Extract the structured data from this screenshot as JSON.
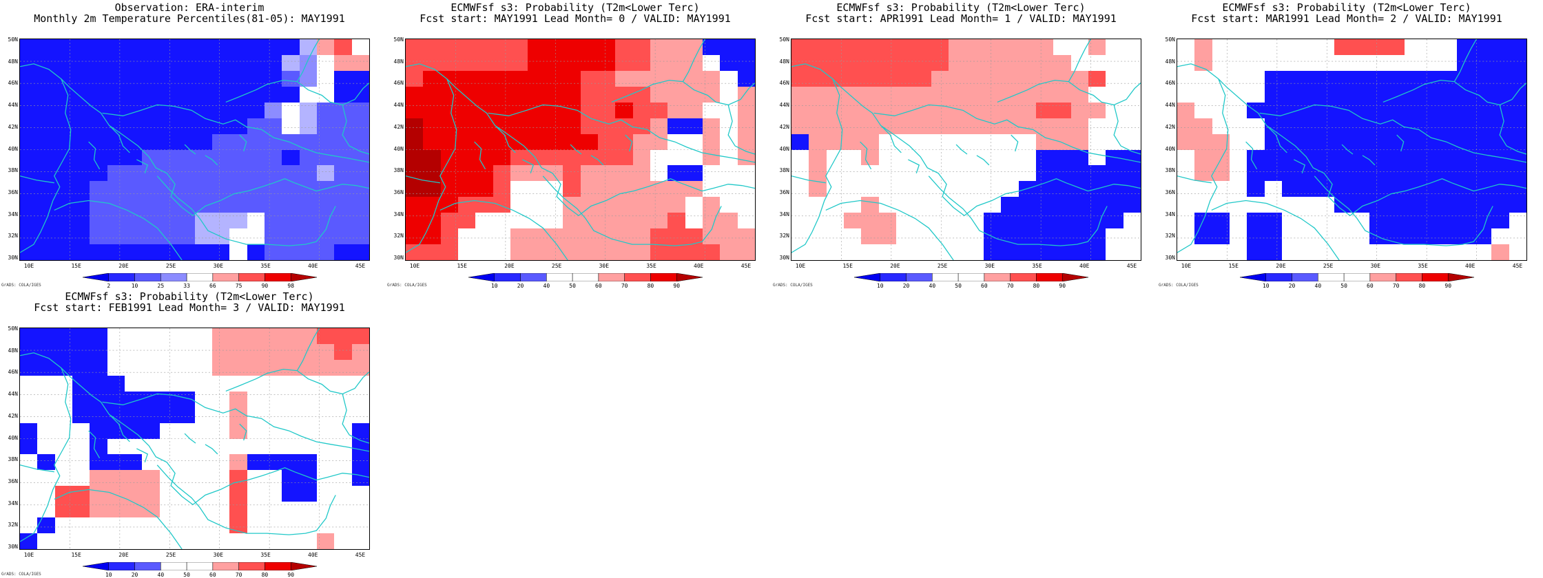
{
  "footer": "GrADS: COLA/IGES",
  "colors": {
    "deep_blue": "#1414ff",
    "mid_blue": "#5a5aff",
    "light_blue": "#8c8cff",
    "pale_blue": "#b4b4ff",
    "white": "#ffffff",
    "pale_red": "#ffa0a0",
    "mid_red": "#ff5050",
    "red": "#ee0000",
    "dark_red": "#b40000",
    "coastline": "#20c8c8"
  },
  "panels": [
    {
      "title1": "Observation: ERA-interim",
      "title2": "Monthly 2m Temperature Percentiles(81-05): MAY1991",
      "colorbar_ticks": [
        "2",
        "10",
        "25",
        "33",
        "66",
        "75",
        "90",
        "98"
      ],
      "colorbar_colors": [
        "#0000f0",
        "#2828ff",
        "#5a5aff",
        "#8c8cff",
        "#ffffff",
        "#ffa0a0",
        "#ff5050",
        "#ee0000",
        "#b40000"
      ],
      "ytick_labels": [
        "50N",
        "48N",
        "46N",
        "44N",
        "42N",
        "40N",
        "38N",
        "36N",
        "34N",
        "32N",
        "30N"
      ],
      "xtick_labels": [
        "10E",
        "15E",
        "20E",
        "25E",
        "30E",
        "35E",
        "40E",
        "45E"
      ],
      "palette": [
        "#ffffff",
        "#1414ff",
        "#5a5aff",
        "#8c8cff",
        "#b4b4ff",
        "#ffa0a0",
        "#ff5050"
      ],
      "grid": [
        "11111111111111114560",
        "11111111111111143055",
        "11111111111111123011",
        "11111111111111110011",
        "11111111111111304222",
        "11111111111112204222",
        "11111111111222222222",
        "11111112222222212222",
        "11111222222222222422",
        "11112222222222222222",
        "11112222222222222222",
        "11112222224440222222",
        "11112222224400222222",
        "11111111111101222211"
      ]
    },
    {
      "title1": "ECMWFsf s3: Probability (T2m<Lower Terc)",
      "title2": "Fcst start: MAY1991   Lead Month= 0 / VALID: MAY1991",
      "colorbar_ticks": [
        "10",
        "20",
        "40",
        "50",
        "60",
        "70",
        "80",
        "90"
      ],
      "colorbar_colors": [
        "#0000f0",
        "#2828ff",
        "#5a5aff",
        "#ffffff",
        "#ffffff",
        "#ffa0a0",
        "#ff5050",
        "#ee0000",
        "#b40000"
      ],
      "ytick_labels": [
        "50N",
        "48N",
        "46N",
        "44N",
        "42N",
        "40N",
        "38N",
        "36N",
        "34N",
        "32N",
        "30N"
      ],
      "xtick_labels": [
        "10E",
        "15E",
        "20E",
        "25E",
        "30E",
        "35E",
        "40E",
        "45E"
      ],
      "palette": [
        "#ffffff",
        "#1414ff",
        "#5a5aff",
        "#8c8cff",
        "#b4b4ff",
        "#ffa0a0",
        "#ff5050",
        "#ee0000",
        "#b40000"
      ],
      "grid": [
        "66666667777766555111",
        "66666667777766555011",
        "67777777776655555501",
        "77777777776666555505",
        "77777777776676655005",
        "87777777776666511505",
        "87777777777665500505",
        "88777766666665000505",
        "88777655565555011000",
        "88777600065555555000",
        "77766600055555550500",
        "77660000055555560550",
        "77600055555555666555",
        "66600055555555666655"
      ]
    },
    {
      "title1": "ECMWFsf s3: Probability (T2m<Lower Terc)",
      "title2": "Fcst start: APR1991   Lead Month= 1 / VALID: MAY1991",
      "colorbar_ticks": [
        "10",
        "20",
        "40",
        "50",
        "60",
        "70",
        "80",
        "90"
      ],
      "colorbar_colors": [
        "#0000f0",
        "#2828ff",
        "#5a5aff",
        "#ffffff",
        "#ffffff",
        "#ffa0a0",
        "#ff5050",
        "#ee0000",
        "#b40000"
      ],
      "ytick_labels": [
        "50N",
        "48N",
        "46N",
        "44N",
        "42N",
        "40N",
        "38N",
        "36N",
        "34N",
        "32N",
        "30N"
      ],
      "xtick_labels": [
        "10E",
        "15E",
        "20E",
        "25E",
        "30E",
        "35E",
        "40E",
        "45E"
      ],
      "palette": [
        "#ffffff",
        "#1414ff",
        "#5a5aff",
        "#8c8cff",
        "#b4b4ff",
        "#ffa0a0",
        "#ff5050"
      ],
      "grid": [
        "66666666655555500500",
        "66666666655555550000",
        "66666666555555555600",
        "55555555555555555000",
        "55555555555555665500",
        "55555555555555555000",
        "15555000000000555000",
        "05005000000000111011",
        "05000000000000111111",
        "05000000000001111111",
        "00005000000011111111",
        "00055500000111111110",
        "00005500000111111100",
        "00000000000111111100"
      ]
    },
    {
      "title1": "ECMWFsf s3: Probability (T2m<Lower Terc)",
      "title2": "Fcst start: MAR1991   Lead Month= 2 / VALID: MAY1991",
      "colorbar_ticks": [
        "10",
        "20",
        "40",
        "50",
        "60",
        "70",
        "80",
        "90"
      ],
      "colorbar_colors": [
        "#0000f0",
        "#2828ff",
        "#5a5aff",
        "#ffffff",
        "#ffffff",
        "#ffa0a0",
        "#ff5050",
        "#ee0000",
        "#b40000"
      ],
      "ytick_labels": [
        "50N",
        "48N",
        "46N",
        "44N",
        "42N",
        "40N",
        "38N",
        "36N",
        "34N",
        "32N",
        "30N"
      ],
      "xtick_labels": [
        "10E",
        "15E",
        "20E",
        "25E",
        "30E",
        "35E",
        "40E",
        "45E"
      ],
      "palette": [
        "#ffffff",
        "#1414ff",
        "#5a5aff",
        "#8c8cff",
        "#b4b4ff",
        "#ffa0a0",
        "#ff5050"
      ],
      "grid": [
        "05000000066660001111",
        "05000000000000001111",
        "00000111111111111111",
        "00000111111111111111",
        "50001111111111111111",
        "55000111111111111111",
        "55500111111111111111",
        "05501111111111111111",
        "05501111111111111111",
        "00001011111111111111",
        "00000000011111111111",
        "01101100000111111110",
        "01101100000111111100",
        "00001100000000000050"
      ]
    },
    {
      "title1": "ECMWFsf s3: Probability (T2m<Lower Terc)",
      "title2": "Fcst start: FEB1991   Lead Month= 3 / VALID: MAY1991",
      "colorbar_ticks": [
        "10",
        "20",
        "40",
        "50",
        "60",
        "70",
        "80",
        "90"
      ],
      "colorbar_colors": [
        "#0000f0",
        "#2828ff",
        "#5a5aff",
        "#ffffff",
        "#ffffff",
        "#ffa0a0",
        "#ff5050",
        "#ee0000",
        "#b40000"
      ],
      "ytick_labels": [
        "50N",
        "48N",
        "46N",
        "44N",
        "42N",
        "40N",
        "38N",
        "36N",
        "34N",
        "32N",
        "30N"
      ],
      "xtick_labels": [
        "10E",
        "15E",
        "20E",
        "25E",
        "30E",
        "35E",
        "40E",
        "45E"
      ],
      "palette": [
        "#ffffff",
        "#1414ff",
        "#5a5aff",
        "#8c8cff",
        "#b4b4ff",
        "#ffa0a0",
        "#ff5050"
      ],
      "grid": [
        "11111000000555555666",
        "11111000000555555565",
        "11111000000555555555",
        "00011100000000000000",
        "00011111110050000000",
        "00011111110050000000",
        "10001111000050000001",
        "10001000000000000001",
        "01001110000051111001",
        "00005555000060011001",
        "00665555000060011000",
        "00665555000060000000",
        "01000000000060000000",
        "10000000000000000500"
      ]
    }
  ]
}
